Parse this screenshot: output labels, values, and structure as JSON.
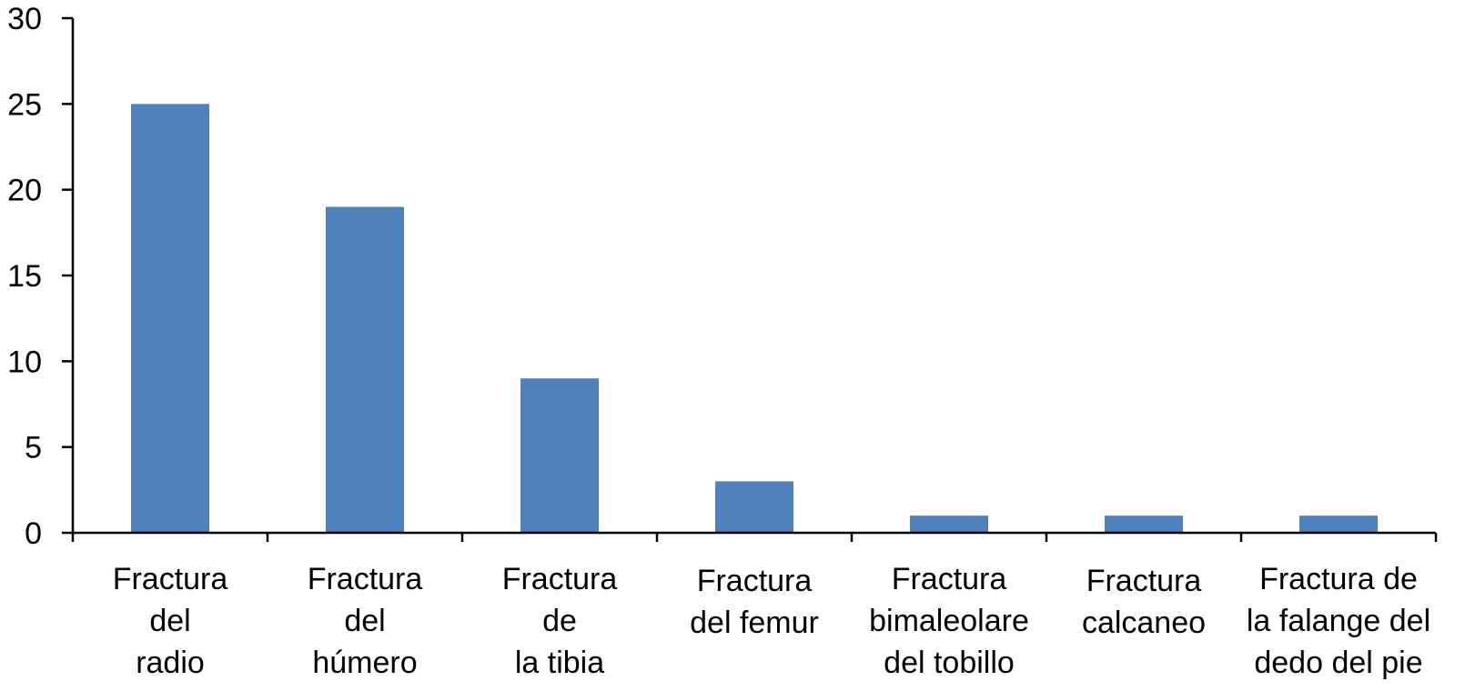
{
  "chart_data": {
    "type": "bar",
    "title": "",
    "xlabel": "",
    "ylabel": "",
    "ylim": [
      0,
      30
    ],
    "yticks": [
      "0",
      "5",
      "10",
      "15",
      "20",
      "25",
      "30"
    ],
    "grid": false,
    "bar_color": "#4F81BD",
    "categories": [
      [
        "Fractura",
        "del",
        "radio"
      ],
      [
        "Fractura",
        "del",
        "húmero"
      ],
      [
        "Fractura",
        "de",
        "la tibia"
      ],
      [
        "Fractura",
        "del femur"
      ],
      [
        "Fractura",
        "bimaleolare",
        "del tobillo"
      ],
      [
        "Fractura",
        "calcaneo"
      ],
      [
        "Fractura de",
        "la falange del",
        "dedo del pie"
      ]
    ],
    "values": [
      25,
      19,
      9,
      3,
      1,
      1,
      1
    ]
  }
}
